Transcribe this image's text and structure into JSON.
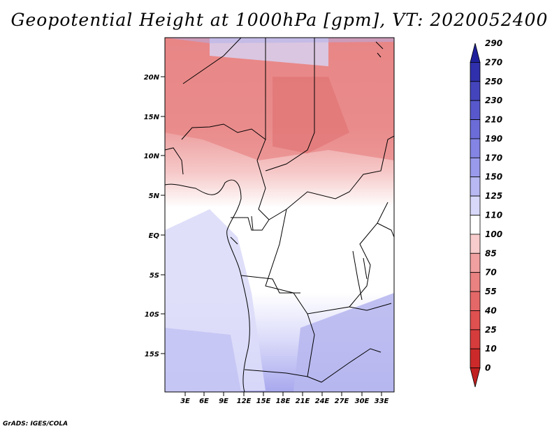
{
  "title": "Geopotential Height at 1000hPa [gpm], VT: 2020052400",
  "footer": "GrADS: IGES/COLA",
  "map": {
    "lat_labels": [
      "20N",
      "15N",
      "10N",
      "5N",
      "EQ",
      "5S",
      "10S",
      "15S"
    ],
    "lon_labels": [
      "3E",
      "6E",
      "9E",
      "12E",
      "15E",
      "18E",
      "21E",
      "24E",
      "27E",
      "30E",
      "33E"
    ]
  },
  "colorbar": {
    "levels": [
      "0",
      "10",
      "25",
      "40",
      "55",
      "70",
      "85",
      "100",
      "110",
      "125",
      "150",
      "170",
      "190",
      "210",
      "230",
      "250",
      "270",
      "290"
    ],
    "colors": [
      "#c02020",
      "#cc2a2a",
      "#d63c3c",
      "#df5050",
      "#e56868",
      "#ea8282",
      "#f0a0a0",
      "#f8cccc",
      "#ffffff",
      "#d8d8fa",
      "#b8b8f2",
      "#9a9aec",
      "#8484e4",
      "#6c6cd8",
      "#5858cc",
      "#4444bc",
      "#3030ac",
      "#20209c"
    ]
  }
}
